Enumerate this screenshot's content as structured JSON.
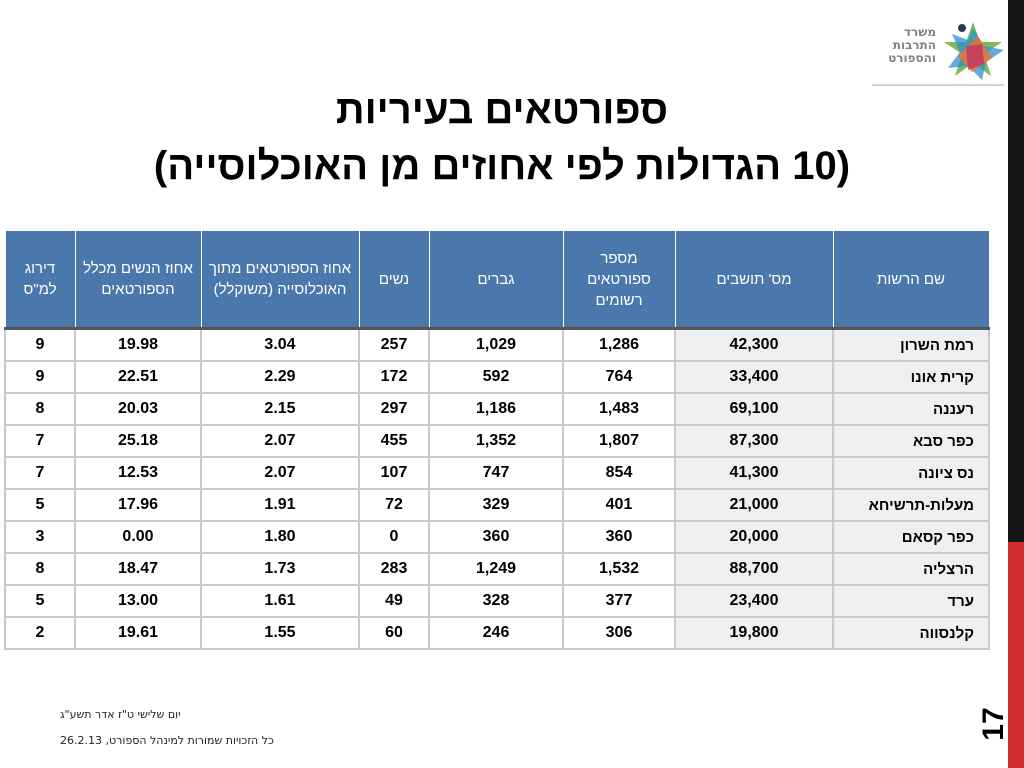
{
  "logo": {
    "lines": [
      "משרד",
      "התרבות",
      "והספורט"
    ]
  },
  "title": {
    "line1": "ספורטאים בעיריות",
    "line2": "(10 הגדולות לפי אחוזים מן האוכלוסייה)"
  },
  "table": {
    "headers": [
      "שם הרשות",
      "מס' תושבים",
      "מספר ספורטאים רשומים",
      "גברים",
      "נשים",
      "אחוז הספורטאים מתוך האוכלוסייה (משוקלל)",
      "אחוז הנשים מכלל הספורטאים",
      "דירוג למ\"ס"
    ],
    "rows": [
      [
        "רמת השרון",
        "42,300",
        "1,286",
        "1,029",
        "257",
        "3.04",
        "19.98",
        "9"
      ],
      [
        "קרית אונו",
        "33,400",
        "764",
        "592",
        "172",
        "2.29",
        "22.51",
        "9"
      ],
      [
        "רעננה",
        "69,100",
        "1,483",
        "1,186",
        "297",
        "2.15",
        "20.03",
        "8"
      ],
      [
        "כפר סבא",
        "87,300",
        "1,807",
        "1,352",
        "455",
        "2.07",
        "25.18",
        "7"
      ],
      [
        "נס ציונה",
        "41,300",
        "854",
        "747",
        "107",
        "2.07",
        "12.53",
        "7"
      ],
      [
        "מעלות-תרשיחא",
        "21,000",
        "401",
        "329",
        "72",
        "1.91",
        "17.96",
        "5"
      ],
      [
        "כפר קסאם",
        "20,000",
        "360",
        "360",
        "0",
        "1.80",
        "0.00",
        "3"
      ],
      [
        "הרצליה",
        "88,700",
        "1,532",
        "1,249",
        "283",
        "1.73",
        "18.47",
        "8"
      ],
      [
        "ערד",
        "23,400",
        "377",
        "328",
        "49",
        "1.61",
        "13.00",
        "5"
      ],
      [
        "קלנסווה",
        "19,800",
        "306",
        "246",
        "60",
        "1.55",
        "19.61",
        "2"
      ]
    ]
  },
  "footer": {
    "date_hebrew": "יום שלישי ט\"ז אדר תשע\"ג",
    "copyright": "כל הזכויות שמורות למינהל הספורט, 26.2.13"
  },
  "page_number": "17",
  "colors": {
    "header_bg": "#4a78ad",
    "accent_red": "#d22f34",
    "side_bar": "#161616"
  }
}
